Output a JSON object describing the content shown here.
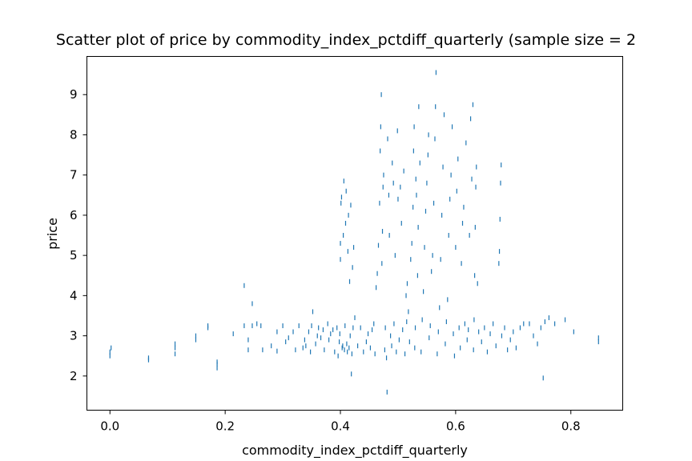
{
  "chart_data": {
    "type": "scatter",
    "title": "Scatter plot of price by commodity_index_pctdiff_quarterly (sample size = 2",
    "xlabel": "commodity_index_pctdiff_quarterly",
    "ylabel": "price",
    "xlim": [
      -0.04,
      0.89
    ],
    "ylim": [
      1.15,
      9.95
    ],
    "x_ticks": [
      0.0,
      0.2,
      0.4,
      0.6,
      0.8
    ],
    "x_tick_labels": [
      "0.0",
      "0.2",
      "0.4",
      "0.6",
      "0.8"
    ],
    "y_ticks": [
      2,
      3,
      4,
      5,
      6,
      7,
      8,
      9
    ],
    "y_tick_labels": [
      "2",
      "3",
      "4",
      "5",
      "6",
      "7",
      "8",
      "9"
    ],
    "grid": false,
    "marker_color": "#1f77b4",
    "marker": "vertical-tick",
    "series": [
      {
        "points": [
          [
            0.0,
            2.5
          ],
          [
            0.0,
            2.6
          ],
          [
            0.002,
            2.7
          ],
          [
            0.067,
            2.4
          ],
          [
            0.067,
            2.45
          ],
          [
            0.113,
            2.55
          ],
          [
            0.113,
            2.7
          ],
          [
            0.113,
            2.8
          ],
          [
            0.149,
            2.9
          ],
          [
            0.149,
            3.0
          ],
          [
            0.17,
            3.2
          ],
          [
            0.17,
            3.25
          ],
          [
            0.186,
            2.2
          ],
          [
            0.186,
            2.3
          ],
          [
            0.186,
            2.35
          ],
          [
            0.214,
            3.05
          ],
          [
            0.233,
            3.25
          ],
          [
            0.233,
            4.25
          ],
          [
            0.24,
            2.65
          ],
          [
            0.24,
            2.9
          ],
          [
            0.247,
            3.25
          ],
          [
            0.247,
            3.8
          ],
          [
            0.255,
            3.3
          ],
          [
            0.262,
            3.25
          ],
          [
            0.265,
            2.65
          ],
          [
            0.28,
            2.75
          ],
          [
            0.29,
            3.1
          ],
          [
            0.29,
            2.62
          ],
          [
            0.3,
            3.25
          ],
          [
            0.305,
            2.85
          ],
          [
            0.31,
            2.95
          ],
          [
            0.318,
            3.1
          ],
          [
            0.322,
            2.65
          ],
          [
            0.328,
            3.25
          ],
          [
            0.335,
            2.7
          ],
          [
            0.338,
            2.9
          ],
          [
            0.34,
            2.75
          ],
          [
            0.345,
            3.1
          ],
          [
            0.348,
            2.6
          ],
          [
            0.35,
            3.25
          ],
          [
            0.352,
            3.6
          ],
          [
            0.357,
            2.8
          ],
          [
            0.36,
            3.0
          ],
          [
            0.362,
            3.2
          ],
          [
            0.366,
            2.95
          ],
          [
            0.37,
            3.15
          ],
          [
            0.372,
            2.65
          ],
          [
            0.378,
            3.3
          ],
          [
            0.38,
            2.9
          ],
          [
            0.383,
            3.05
          ],
          [
            0.387,
            3.15
          ],
          [
            0.39,
            2.6
          ],
          [
            0.394,
            3.2
          ],
          [
            0.396,
            2.5
          ],
          [
            0.398,
            2.85
          ],
          [
            0.399,
            3.05
          ],
          [
            0.4,
            4.9
          ],
          [
            0.4,
            5.3
          ],
          [
            0.401,
            6.3
          ],
          [
            0.402,
            6.45
          ],
          [
            0.403,
            2.7
          ],
          [
            0.404,
            2.75
          ],
          [
            0.405,
            5.5
          ],
          [
            0.406,
            6.85
          ],
          [
            0.407,
            2.65
          ],
          [
            0.408,
            3.25
          ],
          [
            0.409,
            5.8
          ],
          [
            0.41,
            6.6
          ],
          [
            0.411,
            2.8
          ],
          [
            0.412,
            2.6
          ],
          [
            0.413,
            5.1
          ],
          [
            0.414,
            6.0
          ],
          [
            0.415,
            2.7
          ],
          [
            0.416,
            4.35
          ],
          [
            0.417,
            3.0
          ],
          [
            0.418,
            6.25
          ],
          [
            0.419,
            2.05
          ],
          [
            0.42,
            2.55
          ],
          [
            0.421,
            4.7
          ],
          [
            0.422,
            3.2
          ],
          [
            0.423,
            5.2
          ],
          [
            0.425,
            3.45
          ],
          [
            0.43,
            2.75
          ],
          [
            0.435,
            3.2
          ],
          [
            0.44,
            2.6
          ],
          [
            0.445,
            2.85
          ],
          [
            0.448,
            3.05
          ],
          [
            0.452,
            2.7
          ],
          [
            0.455,
            3.15
          ],
          [
            0.458,
            3.3
          ],
          [
            0.46,
            2.55
          ],
          [
            0.462,
            4.2
          ],
          [
            0.464,
            4.55
          ],
          [
            0.466,
            5.25
          ],
          [
            0.468,
            6.3
          ],
          [
            0.469,
            7.6
          ],
          [
            0.47,
            8.2
          ],
          [
            0.471,
            9.0
          ],
          [
            0.472,
            4.8
          ],
          [
            0.473,
            5.6
          ],
          [
            0.474,
            6.7
          ],
          [
            0.475,
            7.0
          ],
          [
            0.477,
            2.65
          ],
          [
            0.478,
            3.2
          ],
          [
            0.48,
            2.45
          ],
          [
            0.481,
            1.6
          ],
          [
            0.482,
            7.9
          ],
          [
            0.484,
            6.5
          ],
          [
            0.485,
            5.5
          ],
          [
            0.487,
            3.0
          ],
          [
            0.489,
            2.75
          ],
          [
            0.49,
            7.3
          ],
          [
            0.492,
            6.8
          ],
          [
            0.493,
            3.3
          ],
          [
            0.495,
            5.0
          ],
          [
            0.497,
            2.6
          ],
          [
            0.499,
            8.1
          ],
          [
            0.5,
            6.4
          ],
          [
            0.502,
            2.9
          ],
          [
            0.504,
            6.7
          ],
          [
            0.506,
            5.8
          ],
          [
            0.508,
            3.15
          ],
          [
            0.51,
            7.1
          ],
          [
            0.512,
            2.55
          ],
          [
            0.514,
            4.0
          ],
          [
            0.515,
            3.35
          ],
          [
            0.516,
            4.3
          ],
          [
            0.518,
            3.6
          ],
          [
            0.52,
            2.85
          ],
          [
            0.522,
            4.9
          ],
          [
            0.524,
            5.3
          ],
          [
            0.526,
            6.2
          ],
          [
            0.527,
            7.6
          ],
          [
            0.528,
            8.2
          ],
          [
            0.529,
            2.7
          ],
          [
            0.53,
            3.2
          ],
          [
            0.531,
            6.9
          ],
          [
            0.532,
            6.5
          ],
          [
            0.534,
            4.5
          ],
          [
            0.535,
            5.7
          ],
          [
            0.536,
            8.7
          ],
          [
            0.538,
            7.3
          ],
          [
            0.54,
            2.6
          ],
          [
            0.542,
            3.4
          ],
          [
            0.544,
            4.1
          ],
          [
            0.546,
            5.2
          ],
          [
            0.548,
            6.1
          ],
          [
            0.55,
            6.8
          ],
          [
            0.552,
            7.5
          ],
          [
            0.553,
            8.0
          ],
          [
            0.554,
            2.95
          ],
          [
            0.556,
            3.25
          ],
          [
            0.558,
            4.6
          ],
          [
            0.56,
            5.0
          ],
          [
            0.562,
            6.3
          ],
          [
            0.564,
            7.9
          ],
          [
            0.565,
            8.7
          ],
          [
            0.566,
            9.55
          ],
          [
            0.568,
            2.55
          ],
          [
            0.57,
            3.1
          ],
          [
            0.572,
            3.7
          ],
          [
            0.574,
            4.9
          ],
          [
            0.576,
            6.0
          ],
          [
            0.578,
            7.2
          ],
          [
            0.58,
            8.5
          ],
          [
            0.582,
            2.8
          ],
          [
            0.584,
            3.35
          ],
          [
            0.586,
            3.9
          ],
          [
            0.588,
            5.5
          ],
          [
            0.59,
            6.4
          ],
          [
            0.592,
            7.0
          ],
          [
            0.594,
            8.2
          ],
          [
            0.596,
            3.05
          ],
          [
            0.598,
            2.5
          ],
          [
            0.6,
            5.2
          ],
          [
            0.602,
            6.6
          ],
          [
            0.604,
            7.4
          ],
          [
            0.606,
            3.2
          ],
          [
            0.608,
            2.7
          ],
          [
            0.61,
            4.8
          ],
          [
            0.612,
            5.8
          ],
          [
            0.614,
            6.2
          ],
          [
            0.616,
            3.3
          ],
          [
            0.618,
            7.8
          ],
          [
            0.62,
            2.9
          ],
          [
            0.622,
            3.15
          ],
          [
            0.624,
            5.5
          ],
          [
            0.626,
            8.4
          ],
          [
            0.628,
            6.9
          ],
          [
            0.63,
            8.75
          ],
          [
            0.631,
            2.65
          ],
          [
            0.632,
            3.4
          ],
          [
            0.633,
            4.5
          ],
          [
            0.634,
            5.7
          ],
          [
            0.635,
            6.7
          ],
          [
            0.636,
            7.2
          ],
          [
            0.638,
            4.3
          ],
          [
            0.64,
            3.1
          ],
          [
            0.645,
            2.85
          ],
          [
            0.65,
            3.2
          ],
          [
            0.655,
            2.6
          ],
          [
            0.66,
            3.05
          ],
          [
            0.665,
            3.3
          ],
          [
            0.67,
            2.75
          ],
          [
            0.675,
            4.8
          ],
          [
            0.676,
            5.1
          ],
          [
            0.677,
            5.9
          ],
          [
            0.678,
            6.8
          ],
          [
            0.679,
            7.25
          ],
          [
            0.68,
            3.0
          ],
          [
            0.685,
            3.2
          ],
          [
            0.69,
            2.65
          ],
          [
            0.695,
            2.9
          ],
          [
            0.7,
            3.1
          ],
          [
            0.705,
            2.7
          ],
          [
            0.712,
            3.2
          ],
          [
            0.718,
            3.3
          ],
          [
            0.728,
            3.3
          ],
          [
            0.735,
            3.0
          ],
          [
            0.742,
            2.8
          ],
          [
            0.748,
            3.2
          ],
          [
            0.755,
            3.35
          ],
          [
            0.752,
            1.95
          ],
          [
            0.762,
            3.45
          ],
          [
            0.772,
            3.3
          ],
          [
            0.79,
            3.4
          ],
          [
            0.805,
            3.1
          ],
          [
            0.848,
            2.85
          ],
          [
            0.848,
            2.95
          ]
        ]
      }
    ]
  }
}
